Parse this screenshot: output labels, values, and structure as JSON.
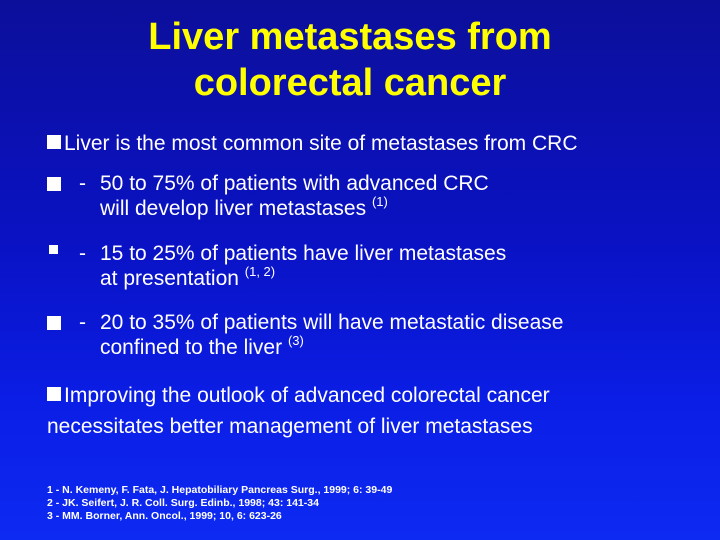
{
  "title": {
    "line1": "Liver metastases from",
    "line2": "colorectal cancer"
  },
  "bullets": [
    {
      "marker": "square-bullet",
      "text": "Liver is the most common site of metastases from CRC"
    }
  ],
  "subpoints": [
    {
      "dash": "-",
      "line1": "50 to 75% of patients with advanced CRC",
      "line2": "will develop liver metastases ",
      "ref": "(1)"
    },
    {
      "dash": "-",
      "line1": "15 to 25% of patients have liver metastases",
      "line2": "at presentation ",
      "ref": "(1, 2)"
    },
    {
      "dash": "-",
      "line1": "20 to 35% of patients will have metastatic disease",
      "line2": "confined to the liver ",
      "ref": "(3)"
    }
  ],
  "conclusion": {
    "line1": "Improving the outlook of advanced colorectal cancer",
    "line2": "necessitates better  management of liver metastases"
  },
  "references": [
    "1 - N. Kemeny, F. Fata, J. Hepatobiliary Pancreas Surg., 1999; 6: 39-49",
    "2 - JK. Seifert, J. R. Coll. Surg. Edinb., 1998; 43: 141-34",
    "3 - MM. Borner, Ann. Oncol., 1999; 10, 6: 623-26"
  ],
  "colors": {
    "background_top": "#0c0f9a",
    "background_bottom": "#0d2af2",
    "title": "#ffff00",
    "text": "#ffffff"
  }
}
